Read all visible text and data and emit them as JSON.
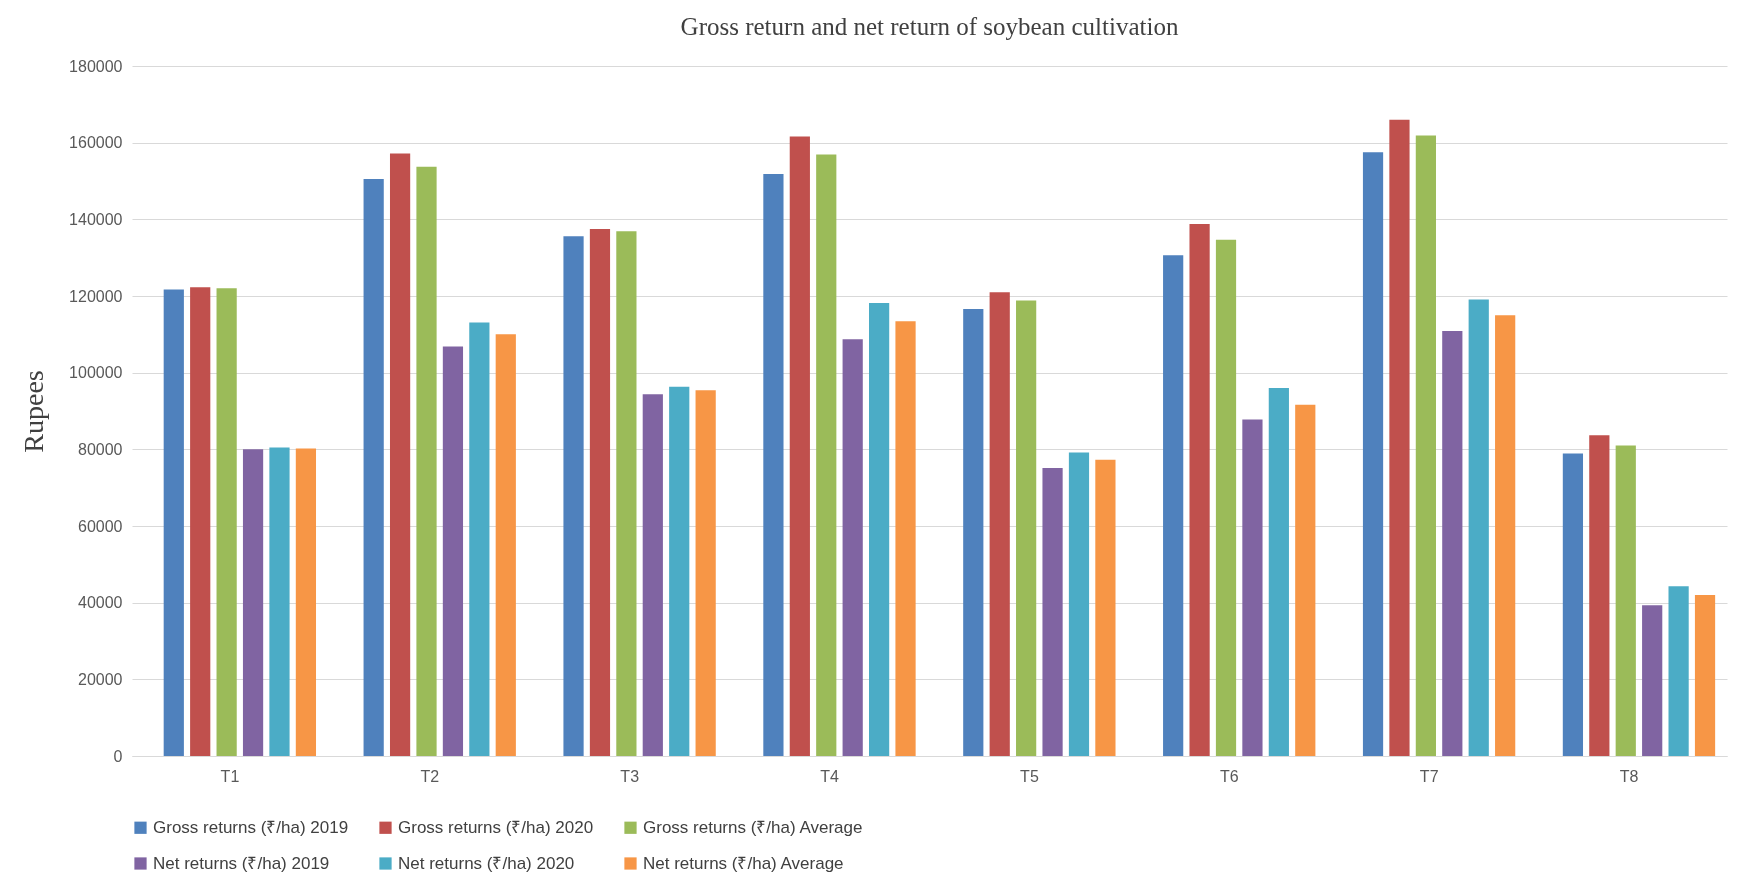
{
  "chart_data": {
    "type": "bar",
    "title": "Gross return and net return of soybean cultivation",
    "ylabel": "Rupees",
    "categories": [
      "T1",
      "T2",
      "T3",
      "T4",
      "T5",
      "T6",
      "T7",
      "T8"
    ],
    "series": [
      {
        "name": "Gross returns (₹/ha) 2019",
        "color": "#4f81bd",
        "values": [
          121700,
          150500,
          135600,
          151800,
          116600,
          130600,
          157500,
          78900
        ]
      },
      {
        "name": "Gross returns (₹/ha) 2020",
        "color": "#c0504d",
        "values": [
          122300,
          157200,
          137500,
          161600,
          121000,
          138800,
          166000,
          83700
        ]
      },
      {
        "name": "Gross returns (₹/ha) Average",
        "color": "#9bbb59",
        "values": [
          122000,
          153700,
          136900,
          156900,
          118800,
          134700,
          161900,
          81000
        ]
      },
      {
        "name": "Net returns (₹/ha) 2019",
        "color": "#8064a2",
        "values": [
          80000,
          106800,
          94400,
          108700,
          75100,
          87800,
          110900,
          39300
        ]
      },
      {
        "name": "Net returns (₹/ha) 2020",
        "color": "#4bacc6",
        "values": [
          80500,
          113100,
          96300,
          118200,
          79200,
          96000,
          119100,
          44300
        ]
      },
      {
        "name": "Net returns (₹/ha) Average",
        "color": "#f79646",
        "values": [
          80200,
          110000,
          95400,
          113400,
          77300,
          91600,
          115000,
          42000
        ]
      }
    ],
    "ylim": [
      0,
      180000
    ],
    "yticks": [
      0,
      20000,
      40000,
      60000,
      80000,
      100000,
      120000,
      140000,
      160000,
      180000
    ],
    "grid": "y",
    "legend": "bottom"
  }
}
